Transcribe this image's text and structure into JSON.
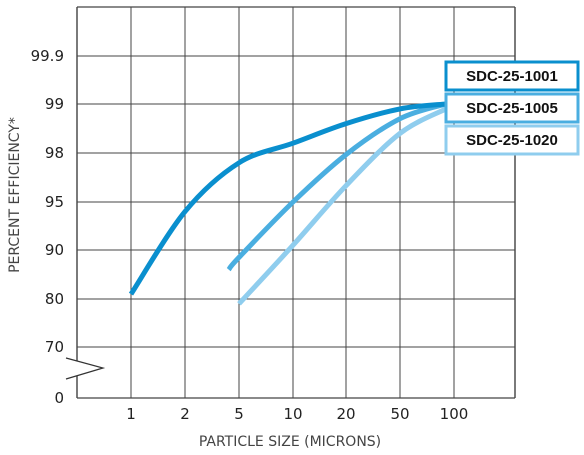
{
  "chart_data": {
    "type": "line",
    "xlabel": "PARTICLE SIZE (MICRONS)",
    "ylabel": "PERCENT EFFICIENCY*",
    "x_ticks": [
      "1",
      "2",
      "5",
      "10",
      "20",
      "50",
      "100"
    ],
    "y_ticks": [
      "0",
      "70",
      "80",
      "90",
      "95",
      "98",
      "99",
      "99.9"
    ],
    "grid": true,
    "legend_placement": "right",
    "series": [
      {
        "name": "SDC-25-1001",
        "color": "#0a8fce",
        "points": [
          [
            1,
            81
          ],
          [
            2,
            94
          ],
          [
            5,
            97.4
          ],
          [
            10,
            98.2
          ],
          [
            20,
            98.6
          ],
          [
            50,
            98.9
          ],
          [
            90,
            99
          ]
        ]
      },
      {
        "name": "SDC-25-1005",
        "color": "#4aaee0",
        "points": [
          [
            4.2,
            86
          ],
          [
            5,
            88.5
          ],
          [
            10,
            95
          ],
          [
            20,
            97.9
          ],
          [
            50,
            98.7
          ],
          [
            90,
            99
          ]
        ]
      },
      {
        "name": "SDC-25-1020",
        "color": "#8fcdee",
        "points": [
          [
            5,
            79
          ],
          [
            10,
            90.5
          ],
          [
            20,
            96
          ],
          [
            50,
            98.4
          ],
          [
            90,
            98.9
          ]
        ]
      }
    ]
  }
}
